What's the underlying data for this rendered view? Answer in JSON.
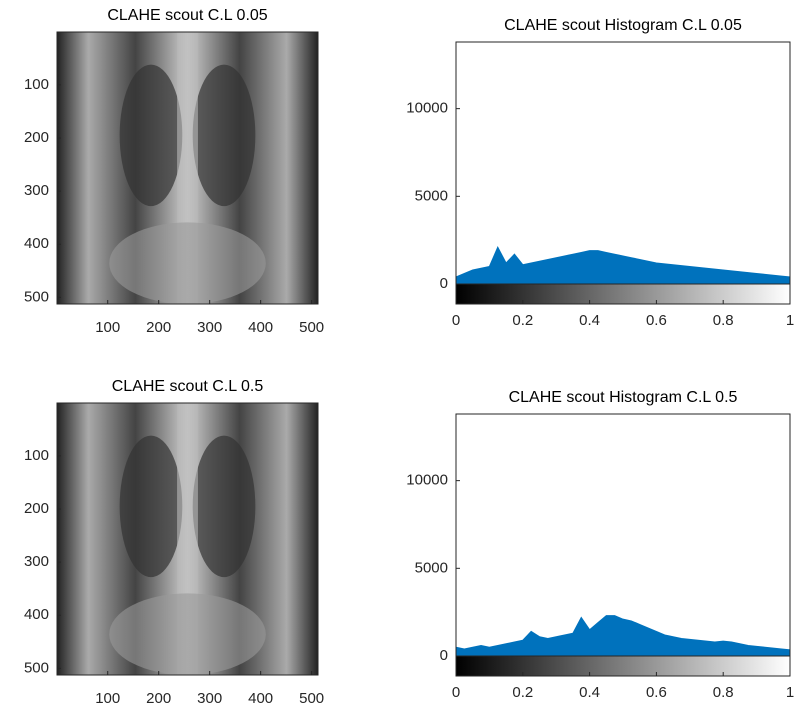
{
  "chart_data": [
    {
      "type": "image",
      "title": "CLAHE scout C.L 0.05",
      "xlim": [
        0.5,
        512.5
      ],
      "ylim": [
        0.5,
        512.5
      ],
      "xticks": [
        100,
        200,
        300,
        400,
        500
      ],
      "yticks": [
        100,
        200,
        300,
        400,
        500
      ]
    },
    {
      "type": "histogram",
      "title": "CLAHE scout Histogram C.L 0.05",
      "color": "#0072bd",
      "xlim": [
        0,
        1
      ],
      "ylim": [
        0,
        13800
      ],
      "xticks": [
        0,
        0.2,
        0.4,
        0.6,
        0.8,
        1
      ],
      "yticks": [
        0,
        5000,
        10000
      ],
      "x": [
        0,
        0.025,
        0.05,
        0.075,
        0.1,
        0.125,
        0.15,
        0.175,
        0.2,
        0.225,
        0.25,
        0.275,
        0.3,
        0.325,
        0.35,
        0.375,
        0.4,
        0.425,
        0.45,
        0.475,
        0.5,
        0.525,
        0.55,
        0.575,
        0.6,
        0.625,
        0.65,
        0.675,
        0.7,
        0.725,
        0.75,
        0.775,
        0.8,
        0.825,
        0.85,
        0.875,
        0.9,
        0.925,
        0.95,
        0.975,
        1
      ],
      "values": [
        400,
        600,
        800,
        900,
        1000,
        2100,
        1200,
        1700,
        1100,
        1200,
        1300,
        1400,
        1500,
        1600,
        1700,
        1800,
        1900,
        1900,
        1800,
        1700,
        1600,
        1500,
        1400,
        1300,
        1200,
        1150,
        1100,
        1050,
        1000,
        950,
        900,
        850,
        800,
        750,
        700,
        650,
        600,
        550,
        500,
        450,
        400
      ]
    },
    {
      "type": "image",
      "title": "CLAHE scout C.L 0.5",
      "xlim": [
        0.5,
        512.5
      ],
      "ylim": [
        0.5,
        512.5
      ],
      "xticks": [
        100,
        200,
        300,
        400,
        500
      ],
      "yticks": [
        100,
        200,
        300,
        400,
        500
      ]
    },
    {
      "type": "histogram",
      "title": "CLAHE scout Histogram C.L 0.5",
      "color": "#0072bd",
      "xlim": [
        0,
        1
      ],
      "ylim": [
        0,
        13800
      ],
      "xticks": [
        0,
        0.2,
        0.4,
        0.6,
        0.8,
        1
      ],
      "yticks": [
        0,
        5000,
        10000
      ],
      "x": [
        0,
        0.025,
        0.05,
        0.075,
        0.1,
        0.125,
        0.15,
        0.175,
        0.2,
        0.225,
        0.25,
        0.275,
        0.3,
        0.325,
        0.35,
        0.375,
        0.4,
        0.425,
        0.45,
        0.475,
        0.5,
        0.525,
        0.55,
        0.575,
        0.6,
        0.625,
        0.65,
        0.675,
        0.7,
        0.725,
        0.75,
        0.775,
        0.8,
        0.825,
        0.85,
        0.875,
        0.9,
        0.925,
        0.95,
        0.975,
        1
      ],
      "values": [
        500,
        400,
        500,
        600,
        500,
        600,
        700,
        800,
        900,
        1400,
        1100,
        1000,
        1100,
        1200,
        1300,
        2200,
        1500,
        1900,
        2300,
        2300,
        2100,
        2000,
        1800,
        1600,
        1400,
        1200,
        1100,
        1000,
        950,
        900,
        850,
        800,
        850,
        800,
        700,
        600,
        550,
        500,
        450,
        400,
        350
      ]
    }
  ]
}
